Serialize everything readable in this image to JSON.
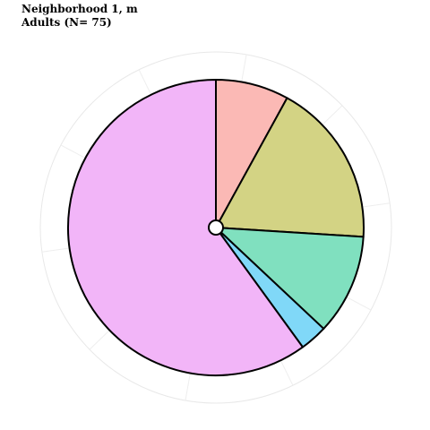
{
  "chart_data": {
    "type": "pie",
    "title": "Neighborhood 1, m",
    "subtitle": "Adults (N= 75)",
    "slices": [
      {
        "value": 8,
        "color": "#fbb9b5"
      },
      {
        "value": 18,
        "color": "#d3d384"
      },
      {
        "value": 11,
        "color": "#80e0bf"
      },
      {
        "value": 3,
        "color": "#80d8f8"
      },
      {
        "value": 60,
        "color": "#f2b5f8"
      }
    ],
    "start_angle_deg": 0,
    "direction": "clockwise",
    "grid": true
  }
}
